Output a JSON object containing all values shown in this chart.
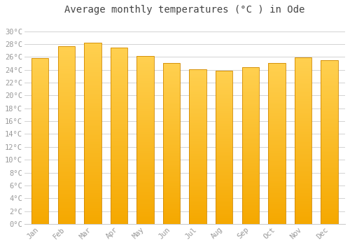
{
  "title": "Average monthly temperatures (°C ) in Ode",
  "months": [
    "Jan",
    "Feb",
    "Mar",
    "Apr",
    "May",
    "Jun",
    "Jul",
    "Aug",
    "Sep",
    "Oct",
    "Nov",
    "Dec"
  ],
  "values": [
    25.8,
    27.7,
    28.2,
    27.4,
    26.1,
    25.1,
    24.1,
    23.9,
    24.4,
    25.1,
    25.9,
    25.5
  ],
  "bar_color_bottom": "#F5A800",
  "bar_color_top": "#FFD050",
  "bar_edge_color": "#D08800",
  "background_color": "#FFFFFF",
  "grid_color": "#CCCCCC",
  "text_color": "#999999",
  "title_color": "#444444",
  "ylim": [
    0,
    32
  ],
  "yticks": [
    0,
    2,
    4,
    6,
    8,
    10,
    12,
    14,
    16,
    18,
    20,
    22,
    24,
    26,
    28,
    30
  ],
  "title_fontsize": 10,
  "tick_fontsize": 7.5,
  "bar_width": 0.65,
  "gradient_steps": 100
}
